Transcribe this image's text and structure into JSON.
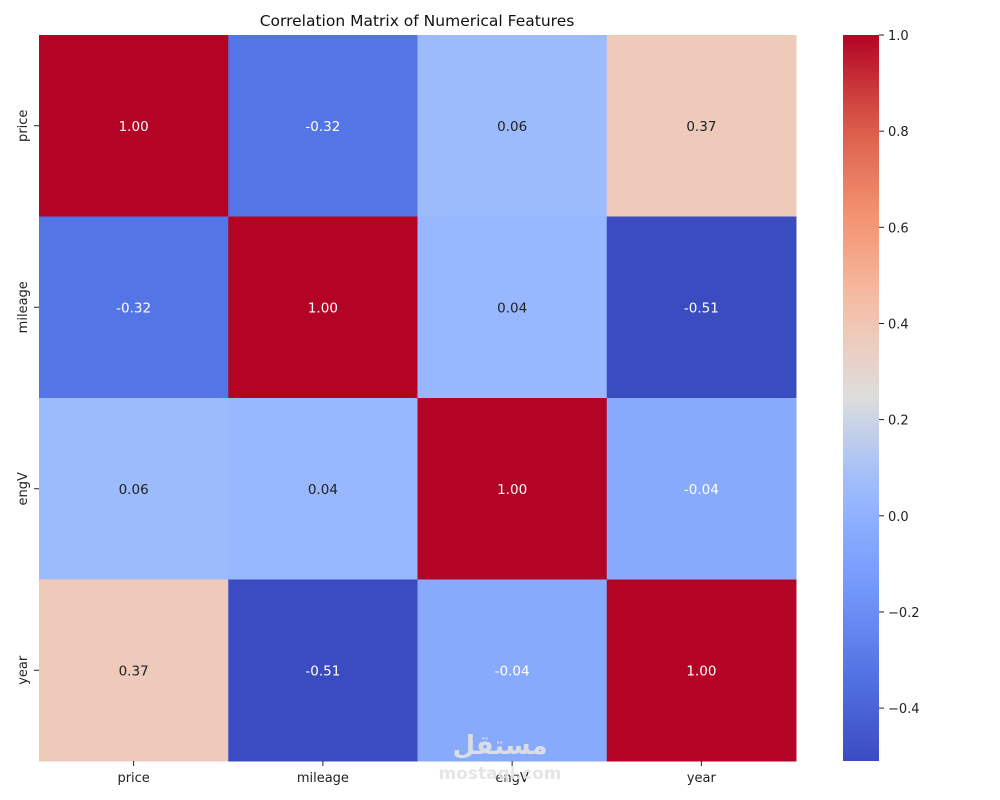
{
  "chart_data": {
    "type": "heatmap",
    "title": "Correlation Matrix of Numerical Features",
    "xlabel": "",
    "ylabel": "",
    "x_labels": [
      "price",
      "mileage",
      "engV",
      "year"
    ],
    "y_labels": [
      "price",
      "mileage",
      "engV",
      "year"
    ],
    "values": [
      [
        1.0,
        -0.32,
        0.06,
        0.37
      ],
      [
        -0.32,
        1.0,
        0.04,
        -0.51
      ],
      [
        0.06,
        0.04,
        1.0,
        -0.04
      ],
      [
        0.37,
        -0.51,
        -0.04,
        1.0
      ]
    ],
    "value_format": "2 decimals",
    "colormap": "coolwarm",
    "vmin": -0.51,
    "vmax": 1.0,
    "colorbar": {
      "ticks": [
        1.0,
        0.8,
        0.6,
        0.4,
        0.2,
        0.0,
        -0.2,
        -0.4
      ],
      "tick_labels": [
        "1.0",
        "0.8",
        "0.6",
        "0.4",
        "0.2",
        "0.0",
        "−0.2",
        "−0.4"
      ],
      "placement": "right"
    },
    "grid": false
  },
  "watermark": {
    "logo_text": "مستقل",
    "text": "mostaql.com"
  }
}
